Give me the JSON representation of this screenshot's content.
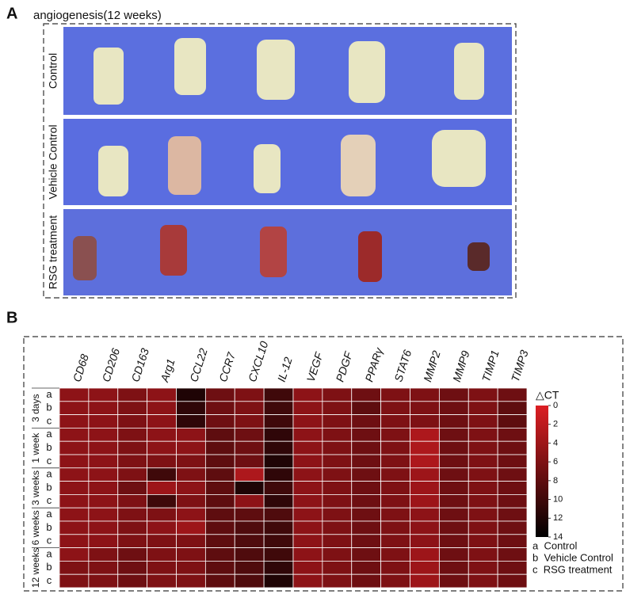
{
  "panel_a": {
    "label": "A",
    "title": "angiogenesis(12 weeks)",
    "rows": [
      "Control",
      "Vehicle Control",
      "RSG treatment"
    ]
  },
  "chart_data": {
    "type": "heatmap",
    "label": "B",
    "columns": [
      "CD68",
      "CD206",
      "CD163",
      "Arg1",
      "CCL22",
      "CCR7",
      "CXCL10",
      "IL-12",
      "VEGF",
      "PDGF",
      "PPARγ",
      "STAT6",
      "MMP2",
      "MMP9",
      "TIMP1",
      "TIMP3"
    ],
    "groups": [
      "3 days",
      "1 week",
      "3 weeks",
      "6 weeks",
      "12 weeks"
    ],
    "row_letters": [
      "a",
      "b",
      "c"
    ],
    "values": [
      [
        5,
        5,
        6,
        5,
        12,
        7,
        6,
        10,
        5,
        6,
        7,
        6,
        6,
        7,
        6,
        7
      ],
      [
        5,
        5,
        6,
        5,
        11,
        7,
        6,
        10,
        5,
        6,
        8,
        6,
        6,
        7,
        6,
        8
      ],
      [
        5,
        5,
        6,
        5,
        11,
        7,
        6,
        10,
        5,
        6,
        7,
        6,
        6,
        7,
        6,
        8
      ],
      [
        5,
        5,
        6,
        5,
        5,
        8,
        7,
        11,
        5,
        6,
        7,
        6,
        3,
        7,
        6,
        7
      ],
      [
        5,
        5,
        6,
        5,
        5,
        8,
        7,
        11,
        5,
        6,
        7,
        6,
        3,
        7,
        6,
        7
      ],
      [
        5,
        5,
        6,
        6,
        6,
        8,
        7,
        12,
        5,
        6,
        7,
        6,
        3,
        7,
        6,
        7
      ],
      [
        5,
        5,
        6,
        10,
        6,
        8,
        3,
        11,
        5,
        6,
        7,
        6,
        4,
        7,
        6,
        7
      ],
      [
        5,
        5,
        7,
        4,
        5,
        8,
        12,
        10,
        5,
        6,
        7,
        6,
        4,
        7,
        6,
        7
      ],
      [
        5,
        5,
        6,
        10,
        6,
        8,
        5,
        11,
        5,
        6,
        7,
        6,
        4,
        7,
        6,
        7
      ],
      [
        5,
        5,
        6,
        6,
        5,
        8,
        8,
        9,
        5,
        6,
        7,
        6,
        5,
        7,
        6,
        7
      ],
      [
        5,
        5,
        6,
        5,
        4,
        8,
        9,
        10,
        5,
        6,
        7,
        6,
        5,
        7,
        6,
        7
      ],
      [
        5,
        5,
        6,
        6,
        6,
        8,
        9,
        10,
        5,
        6,
        7,
        6,
        5,
        7,
        6,
        7
      ],
      [
        5,
        6,
        7,
        6,
        6,
        8,
        9,
        10,
        5,
        6,
        7,
        6,
        4,
        7,
        6,
        7
      ],
      [
        6,
        6,
        7,
        6,
        6,
        8,
        9,
        11,
        5,
        6,
        7,
        6,
        4,
        7,
        6,
        7
      ],
      [
        6,
        6,
        7,
        6,
        6,
        8,
        9,
        12,
        5,
        6,
        7,
        6,
        4,
        7,
        6,
        7
      ]
    ],
    "colorbar_title": "△CT",
    "clim": [
      0,
      14
    ],
    "cticks": [
      0,
      2,
      4,
      6,
      8,
      10,
      12,
      14
    ],
    "low_color": "#dc1e23",
    "high_color": "#000000",
    "legend": [
      "a  Control",
      "b  Vehicle Control",
      "c  RSG treatment"
    ]
  }
}
